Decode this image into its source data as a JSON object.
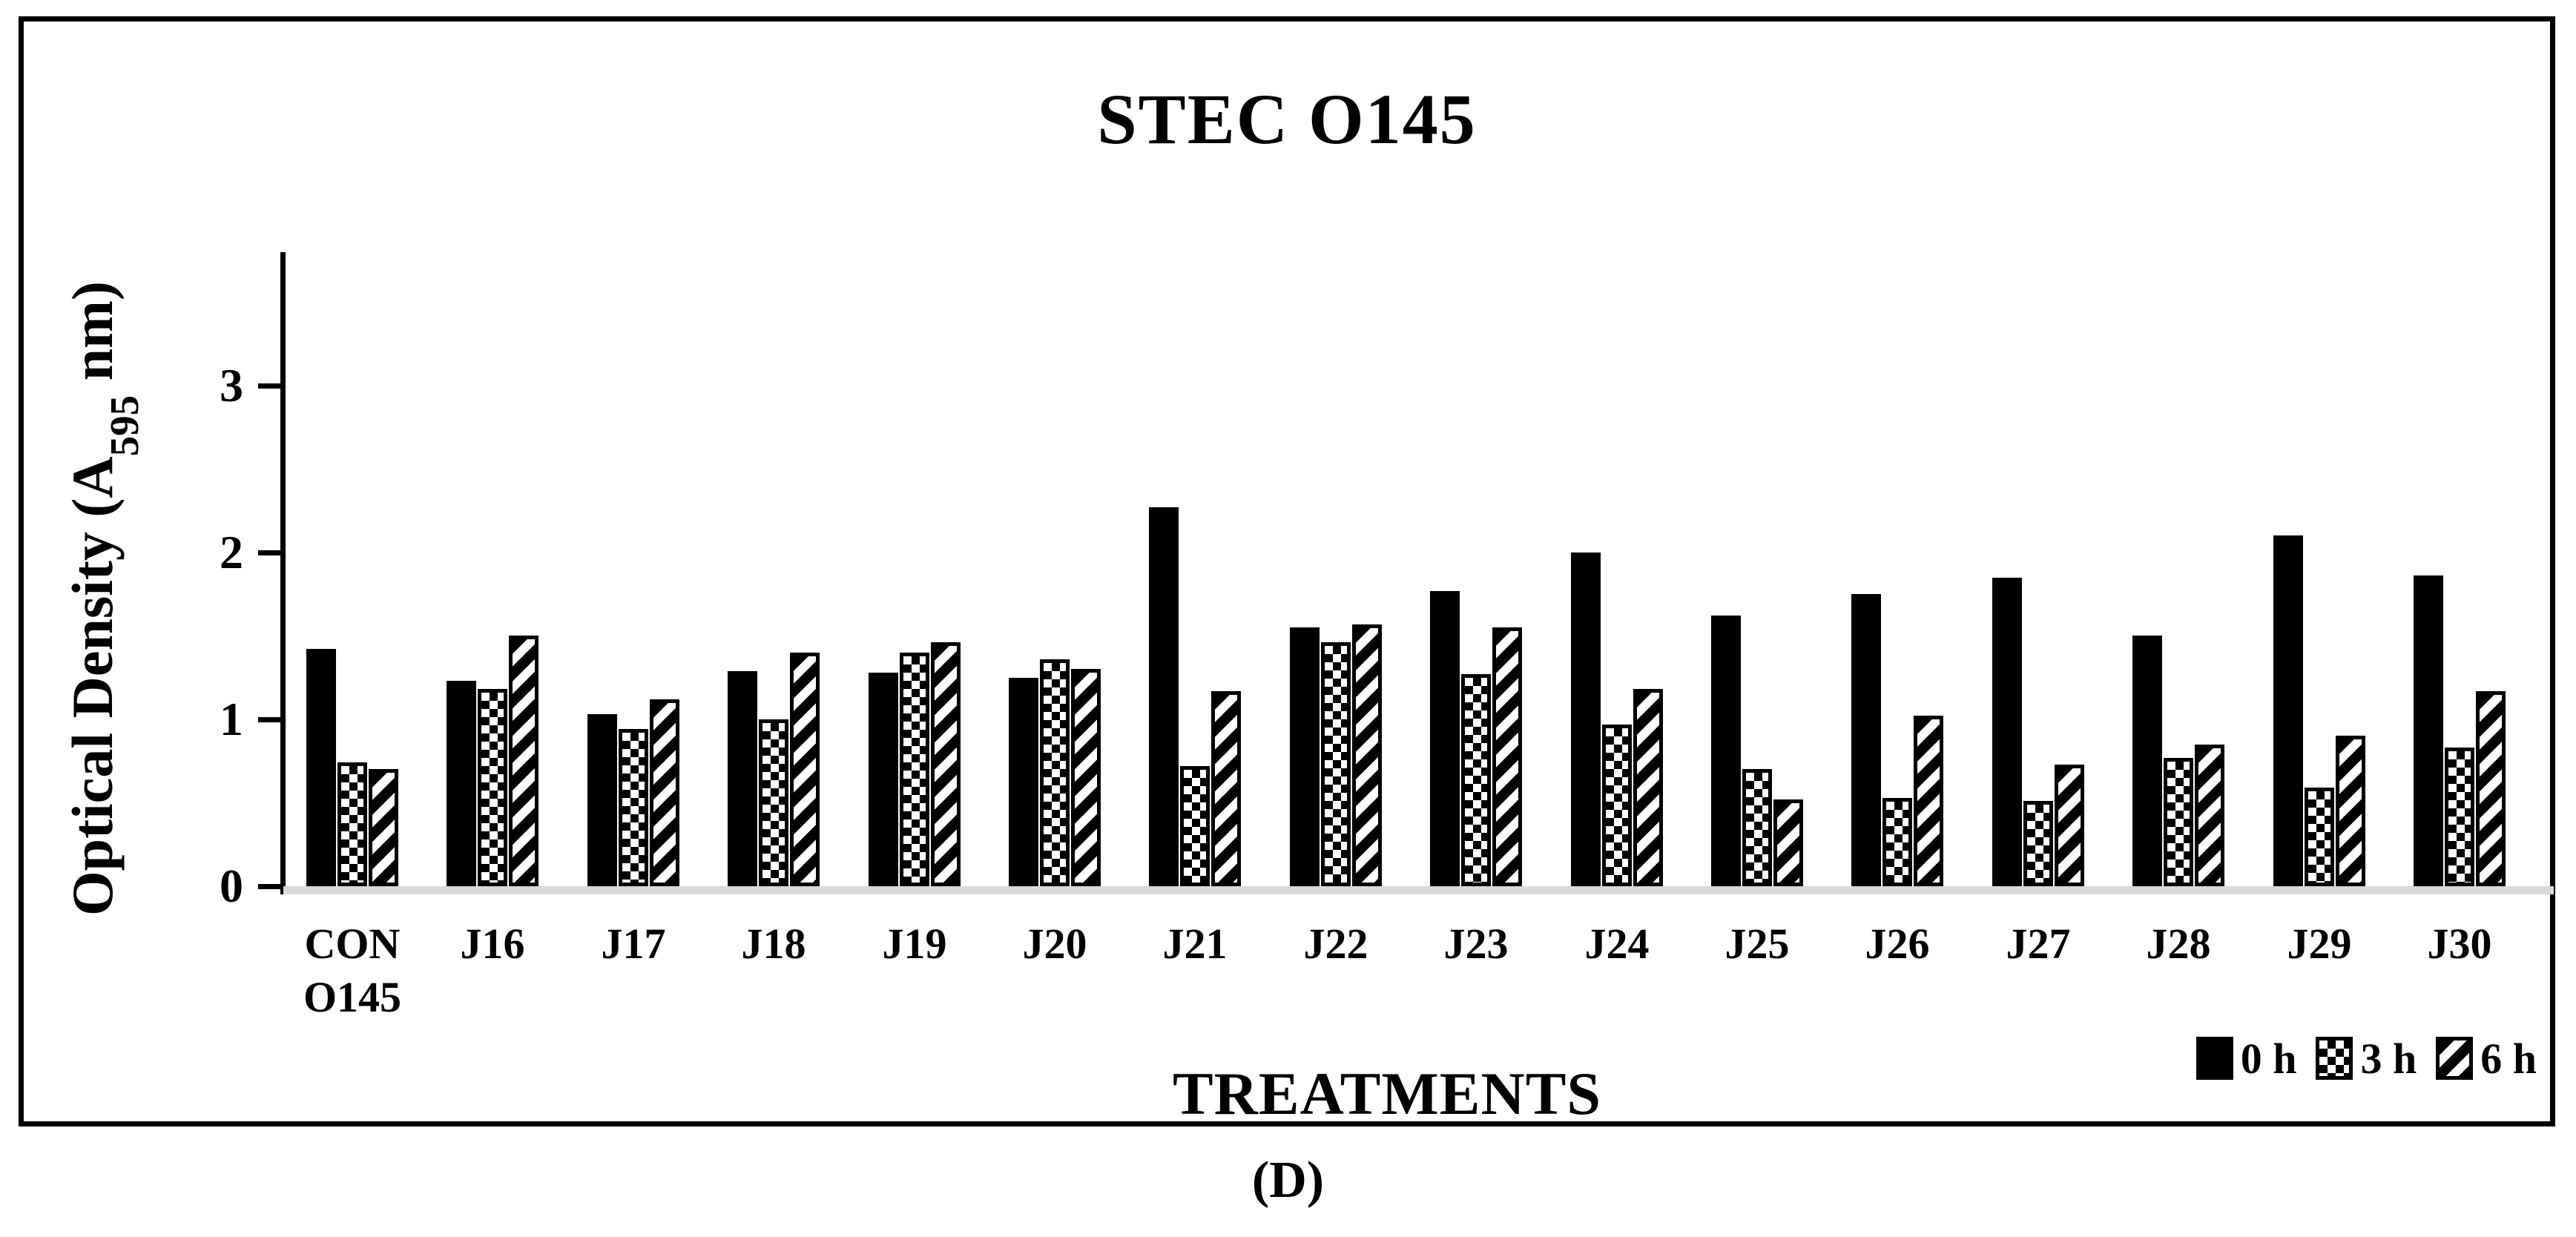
{
  "figure": {
    "caption": "(D)"
  },
  "chart_data": {
    "type": "bar",
    "title": "STEC O145",
    "xlabel": "TREATMENTS",
    "ylabel": "Optical Density (A595 nm)",
    "ylabel_prefix": "Optical Density (A",
    "ylabel_sub": "595",
    "ylabel_suffix": " nm)",
    "ylim": [
      0,
      3.8
    ],
    "y_ticks": [
      0,
      1,
      2,
      3
    ],
    "grid": false,
    "legend_position": "bottom-right",
    "colors": {
      "bar": "#000000",
      "background": "#ffffff",
      "baseline": "#d9d9d9"
    },
    "categories": [
      [
        "CON",
        "O145"
      ],
      [
        "J16"
      ],
      [
        "J17"
      ],
      [
        "J18"
      ],
      [
        "J19"
      ],
      [
        "J20"
      ],
      [
        "J21"
      ],
      [
        "J22"
      ],
      [
        "J23"
      ],
      [
        "J24"
      ],
      [
        "J25"
      ],
      [
        "J26"
      ],
      [
        "J27"
      ],
      [
        "J28"
      ],
      [
        "J29"
      ],
      [
        "J30"
      ]
    ],
    "series": [
      {
        "name": "0 h",
        "pattern": "dotted",
        "values": [
          1.42,
          1.23,
          1.03,
          1.29,
          1.28,
          1.25,
          2.27,
          1.55,
          1.77,
          2.0,
          1.62,
          1.75,
          1.85,
          1.5,
          2.1,
          1.86
        ]
      },
      {
        "name": "3 h",
        "pattern": "checkerboard",
        "values": [
          0.74,
          1.18,
          0.94,
          1.0,
          1.4,
          1.36,
          0.72,
          1.46,
          1.27,
          0.97,
          0.7,
          0.53,
          0.51,
          0.77,
          0.59,
          0.83
        ]
      },
      {
        "name": "6 h",
        "pattern": "diagonal-stripes",
        "values": [
          0.7,
          1.5,
          1.12,
          1.4,
          1.46,
          1.3,
          1.17,
          1.57,
          1.55,
          1.18,
          0.52,
          1.02,
          0.73,
          0.85,
          0.9,
          1.17
        ]
      }
    ]
  }
}
